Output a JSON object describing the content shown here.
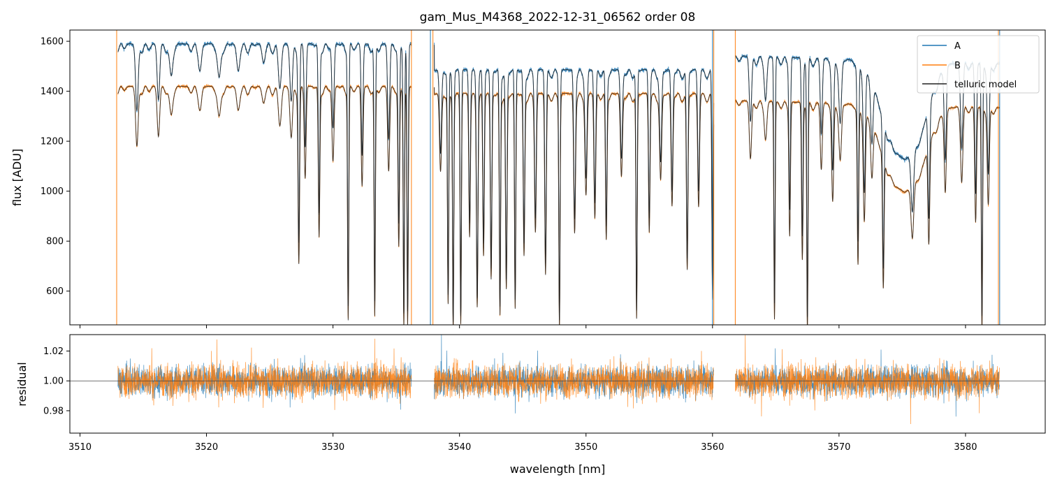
{
  "chart_data": [
    {
      "type": "line",
      "panel": "flux",
      "title": "gam_Mus_M4368_2022-12-31_06562  order 08",
      "xlabel": "",
      "ylabel": "flux [ADU]",
      "xlim": [
        3509.2,
        3586.3
      ],
      "ylim": [
        465,
        1645
      ],
      "yticks": [
        600,
        800,
        1000,
        1200,
        1400,
        1600
      ],
      "xticks": [
        3510,
        3520,
        3530,
        3540,
        3550,
        3560,
        3570,
        3580
      ],
      "legend": {
        "placement": "top-right",
        "entries": [
          "A",
          "B",
          "telluric model"
        ]
      },
      "series": [
        {
          "name": "A",
          "color": "#1f77b4",
          "continuum": 1590,
          "segments": [
            [
              3513.0,
              3536.2
            ],
            [
              3538.0,
              3560.1
            ],
            [
              3561.8,
              3582.7
            ]
          ]
        },
        {
          "name": "B",
          "color": "#ff7f0e",
          "continuum": 1420,
          "segments": [
            [
              3513.0,
              3536.2
            ],
            [
              3538.0,
              3560.1
            ],
            [
              3561.8,
              3582.7
            ]
          ]
        },
        {
          "name": "telluric model",
          "color": "#222222"
        }
      ],
      "edge_lines": [
        {
          "x": 3512.9,
          "color": "#ff7f0e"
        },
        {
          "x": 3536.2,
          "color": "#ff7f0e"
        },
        {
          "x": 3537.9,
          "color": "#ff7f0e"
        },
        {
          "x": 3537.7,
          "color": "#1f77b4"
        },
        {
          "x": 3560.1,
          "color": "#ff7f0e"
        },
        {
          "x": 3560.0,
          "color": "#1f77b4"
        },
        {
          "x": 3561.8,
          "color": "#ff7f0e"
        },
        {
          "x": 3582.6,
          "color": "#ff7f0e"
        },
        {
          "x": 3582.7,
          "color": "#1f77b4"
        }
      ],
      "absorption_lines": [
        [
          3514.5,
          1180,
          0.1
        ],
        [
          3516.2,
          1220,
          0.1
        ],
        [
          3517.2,
          1310,
          0.12
        ],
        [
          3519.5,
          1340,
          0.12
        ],
        [
          3521.0,
          1300,
          0.12
        ],
        [
          3522.5,
          1330,
          0.12
        ],
        [
          3524.5,
          1360,
          0.12
        ],
        [
          3525.8,
          1270,
          0.12
        ],
        [
          3526.7,
          1220,
          0.1
        ],
        [
          3527.3,
          720,
          0.06
        ],
        [
          3527.8,
          1060,
          0.07
        ],
        [
          3528.9,
          820,
          0.06
        ],
        [
          3530.0,
          1120,
          0.08
        ],
        [
          3531.2,
          490,
          0.05
        ],
        [
          3532.3,
          1020,
          0.07
        ],
        [
          3533.3,
          500,
          0.05
        ],
        [
          3534.4,
          1080,
          0.08
        ],
        [
          3535.2,
          780,
          0.06
        ],
        [
          3535.6,
          465,
          0.05
        ],
        [
          3535.9,
          465,
          0.05
        ],
        [
          3538.5,
          1100,
          0.08
        ],
        [
          3539.1,
          560,
          0.05
        ],
        [
          3539.5,
          465,
          0.05
        ],
        [
          3540.1,
          480,
          0.05
        ],
        [
          3540.8,
          840,
          0.06
        ],
        [
          3541.4,
          560,
          0.06
        ],
        [
          3541.9,
          760,
          0.06
        ],
        [
          3542.5,
          660,
          0.06
        ],
        [
          3543.2,
          520,
          0.05
        ],
        [
          3543.7,
          620,
          0.06
        ],
        [
          3544.4,
          540,
          0.05
        ],
        [
          3545.1,
          760,
          0.06
        ],
        [
          3546.0,
          860,
          0.07
        ],
        [
          3546.8,
          680,
          0.06
        ],
        [
          3547.9,
          470,
          0.05
        ],
        [
          3549.1,
          860,
          0.07
        ],
        [
          3550.0,
          1010,
          0.08
        ],
        [
          3550.7,
          910,
          0.07
        ],
        [
          3551.6,
          830,
          0.06
        ],
        [
          3552.8,
          1080,
          0.08
        ],
        [
          3554.0,
          500,
          0.05
        ],
        [
          3555.0,
          860,
          0.06
        ],
        [
          3555.9,
          1070,
          0.08
        ],
        [
          3556.8,
          960,
          0.07
        ],
        [
          3558.0,
          700,
          0.06
        ],
        [
          3558.9,
          960,
          0.07
        ],
        [
          3560.0,
          580,
          0.05
        ],
        [
          3563.0,
          1180,
          0.09
        ],
        [
          3564.2,
          1270,
          0.1
        ],
        [
          3564.9,
          510,
          0.05
        ],
        [
          3566.1,
          870,
          0.06
        ],
        [
          3567.1,
          760,
          0.06
        ],
        [
          3567.5,
          465,
          0.05
        ],
        [
          3568.6,
          1140,
          0.08
        ],
        [
          3569.5,
          1010,
          0.08
        ],
        [
          3570.1,
          1190,
          0.1
        ],
        [
          3571.5,
          750,
          0.06
        ],
        [
          3572.0,
          960,
          0.08
        ],
        [
          3572.6,
          1180,
          0.09
        ],
        [
          3573.5,
          760,
          0.06
        ],
        [
          3575.8,
          1160,
          0.1
        ],
        [
          3577.1,
          950,
          0.07
        ],
        [
          3578.4,
          1080,
          0.08
        ],
        [
          3579.7,
          1120,
          0.09
        ],
        [
          3580.8,
          930,
          0.07
        ],
        [
          3581.3,
          470,
          0.05
        ],
        [
          3581.8,
          1010,
          0.08
        ]
      ],
      "broad_features": [
        [
          3574.5,
          1120,
          1.2
        ],
        [
          3576.2,
          1200,
          1.0
        ]
      ]
    },
    {
      "type": "line",
      "panel": "residual",
      "xlabel": "wavelength [nm]",
      "ylabel": "residual",
      "xlim": [
        3509.2,
        3586.3
      ],
      "ylim": [
        0.965,
        1.031
      ],
      "yticks": [
        0.98,
        1.0,
        1.02
      ],
      "yticklabels": [
        "0.98",
        "1.00",
        "1.02"
      ],
      "xticks": [
        3510,
        3520,
        3530,
        3540,
        3550,
        3560,
        3570,
        3580
      ],
      "reference_line": 1.0,
      "series": [
        {
          "name": "A",
          "color": "#1f77b4",
          "noise": 0.01
        },
        {
          "name": "B",
          "color": "#ff7f0e",
          "noise": 0.011
        }
      ],
      "segments": [
        [
          3513.0,
          3536.2
        ],
        [
          3538.0,
          3560.1
        ],
        [
          3561.8,
          3582.7
        ]
      ]
    }
  ]
}
